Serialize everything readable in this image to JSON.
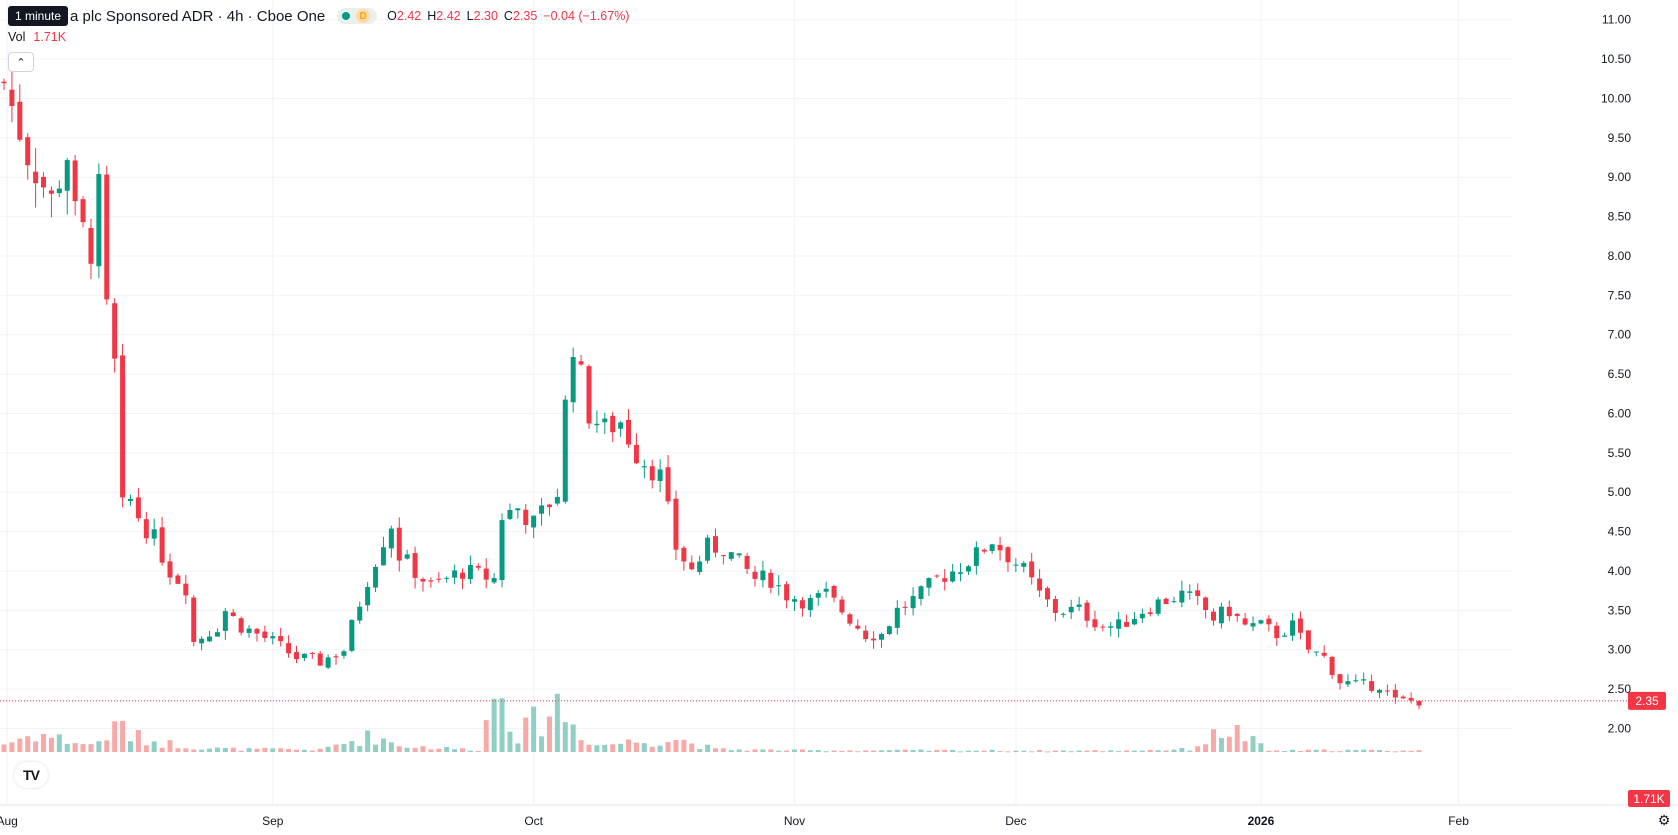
{
  "header": {
    "tooltip": "1 minute",
    "symbol": "a plc Sponsored ADR · 4h · Cboe One",
    "status_letter": "D",
    "ohlc": [
      {
        "k": "O",
        "v": "2.42"
      },
      {
        "k": "H",
        "v": "2.42"
      },
      {
        "k": "L",
        "v": "2.30"
      },
      {
        "k": "C",
        "v": "2.35"
      }
    ],
    "change": "−0.04 (−1.67%)",
    "vol_label": "Vol",
    "vol_value": "1.71K"
  },
  "colors": {
    "up": "#089981",
    "down": "#f23645",
    "up_vol": "#91cfc5",
    "down_vol": "#f7a9a7"
  },
  "chart_data": {
    "type": "candlestick",
    "y_ticks": [
      "11.00",
      "10.50",
      "10.00",
      "9.50",
      "9.00",
      "8.50",
      "8.00",
      "7.50",
      "7.00",
      "6.50",
      "6.00",
      "5.50",
      "5.00",
      "4.50",
      "4.00",
      "3.50",
      "3.00",
      "2.50",
      "2.00"
    ],
    "y_range": [
      1.6,
      11.25
    ],
    "x_labels": [
      {
        "label": "Aug",
        "x": 0.4
      },
      {
        "label": "Sep",
        "x": 34
      },
      {
        "label": "Oct",
        "x": 67
      },
      {
        "label": "Nov",
        "x": 100
      },
      {
        "label": "Dec",
        "x": 128
      },
      {
        "label": "2026",
        "x": 159
      },
      {
        "label": "Feb",
        "x": 184
      }
    ],
    "x_count": 190,
    "last_price": "2.35",
    "last_price_value": 2.35,
    "last_volume": "1.71K",
    "price_points": [
      [
        0,
        10.2
      ],
      [
        3,
        9.3
      ],
      [
        6,
        8.7
      ],
      [
        8,
        9.3
      ],
      [
        9,
        8.5
      ],
      [
        11,
        8.1
      ],
      [
        12,
        8.8
      ],
      [
        13,
        7.3
      ],
      [
        14,
        6.6
      ],
      [
        15,
        4.8
      ],
      [
        16,
        4.9
      ],
      [
        17,
        4.7
      ],
      [
        19,
        4.4
      ],
      [
        21,
        4.0
      ],
      [
        23,
        3.8
      ],
      [
        24,
        3.1
      ],
      [
        27,
        3.3
      ],
      [
        28,
        3.5
      ],
      [
        30,
        3.3
      ],
      [
        34,
        3.1
      ],
      [
        37,
        2.9
      ],
      [
        40,
        2.85
      ],
      [
        43,
        3.0
      ],
      [
        46,
        3.9
      ],
      [
        48,
        4.4
      ],
      [
        49,
        4.6
      ],
      [
        50,
        4.2
      ],
      [
        52,
        4.0
      ],
      [
        54,
        3.8
      ],
      [
        56,
        3.9
      ],
      [
        58,
        4.0
      ],
      [
        62,
        3.9
      ],
      [
        63,
        4.7
      ],
      [
        65,
        4.8
      ],
      [
        67,
        4.6
      ],
      [
        70,
        5.0
      ],
      [
        71,
        6.1
      ],
      [
        72,
        6.9
      ],
      [
        74,
        6.0
      ],
      [
        76,
        5.8
      ],
      [
        78,
        5.9
      ],
      [
        80,
        5.5
      ],
      [
        83,
        5.2
      ],
      [
        85,
        4.3
      ],
      [
        87,
        4.0
      ],
      [
        89,
        4.3
      ],
      [
        91,
        4.3
      ],
      [
        95,
        3.9
      ],
      [
        97,
        3.9
      ],
      [
        99,
        3.7
      ],
      [
        102,
        3.6
      ],
      [
        104,
        3.7
      ],
      [
        106,
        3.5
      ],
      [
        109,
        3.2
      ],
      [
        111,
        3.2
      ],
      [
        113,
        3.5
      ],
      [
        116,
        3.7
      ],
      [
        118,
        3.9
      ],
      [
        120,
        4.0
      ],
      [
        123,
        4.2
      ],
      [
        125,
        4.4
      ],
      [
        127,
        4.2
      ],
      [
        129,
        4.0
      ],
      [
        131,
        3.7
      ],
      [
        133,
        3.5
      ],
      [
        136,
        3.5
      ],
      [
        139,
        3.3
      ],
      [
        141,
        3.3
      ],
      [
        144,
        3.5
      ],
      [
        146,
        3.6
      ],
      [
        149,
        3.7
      ],
      [
        151,
        3.6
      ],
      [
        153,
        3.4
      ],
      [
        155,
        3.5
      ],
      [
        157,
        3.3
      ],
      [
        159,
        3.3
      ],
      [
        161,
        3.2
      ],
      [
        163,
        3.3
      ],
      [
        165,
        3.0
      ],
      [
        167,
        2.9
      ],
      [
        169,
        2.6
      ],
      [
        171,
        2.55
      ],
      [
        174,
        2.55
      ],
      [
        176,
        2.35
      ]
    ],
    "volume_points": [
      [
        0,
        0.3
      ],
      [
        4,
        0.7
      ],
      [
        7,
        0.5
      ],
      [
        11,
        0.25
      ],
      [
        15,
        1.0
      ],
      [
        16,
        0.6
      ],
      [
        20,
        0.35
      ],
      [
        25,
        0.15
      ],
      [
        30,
        0.1
      ],
      [
        35,
        0.1
      ],
      [
        40,
        0.08
      ],
      [
        45,
        0.5
      ],
      [
        47,
        0.6
      ],
      [
        50,
        0.25
      ],
      [
        55,
        0.15
      ],
      [
        60,
        0.08
      ],
      [
        63,
        3.0
      ],
      [
        65,
        0.6
      ],
      [
        70,
        1.8
      ],
      [
        72,
        1.0
      ],
      [
        75,
        0.25
      ],
      [
        80,
        0.4
      ],
      [
        85,
        0.5
      ],
      [
        90,
        0.1
      ],
      [
        100,
        0.06
      ],
      [
        110,
        0.06
      ],
      [
        120,
        0.06
      ],
      [
        130,
        0.05
      ],
      [
        140,
        0.05
      ],
      [
        150,
        0.1
      ],
      [
        155,
        0.9
      ],
      [
        160,
        0.05
      ],
      [
        170,
        0.07
      ],
      [
        176,
        0.05
      ]
    ],
    "volume_max": 3.2
  }
}
